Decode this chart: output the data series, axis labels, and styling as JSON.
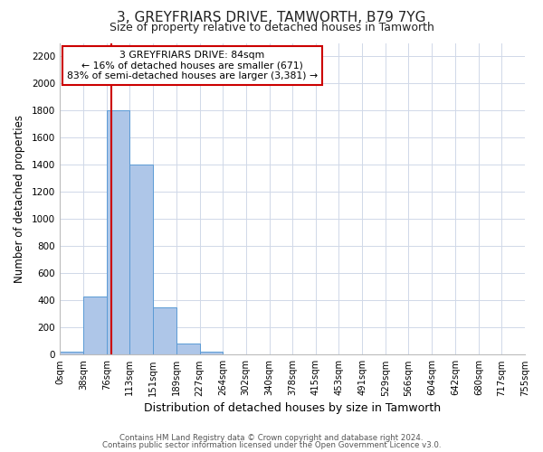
{
  "title": "3, GREYFRIARS DRIVE, TAMWORTH, B79 7YG",
  "subtitle": "Size of property relative to detached houses in Tamworth",
  "xlabel": "Distribution of detached houses by size in Tamworth",
  "ylabel": "Number of detached properties",
  "bin_edges": [
    0,
    38,
    76,
    113,
    151,
    189,
    227,
    264,
    302,
    340,
    378,
    415,
    453,
    491,
    529,
    566,
    604,
    642,
    680,
    717,
    755
  ],
  "bar_heights": [
    20,
    430,
    1800,
    1400,
    350,
    80,
    25,
    5,
    2,
    0,
    0,
    0,
    0,
    0,
    0,
    0,
    0,
    0,
    0,
    0
  ],
  "bar_color": "#aec6e8",
  "bar_edge_color": "#5b9bd5",
  "red_line_x": 84,
  "red_line_color": "#cc0000",
  "ylim": [
    0,
    2300
  ],
  "yticks": [
    0,
    200,
    400,
    600,
    800,
    1000,
    1200,
    1400,
    1600,
    1800,
    2000,
    2200
  ],
  "annotation_line1": "3 GREYFRIARS DRIVE: 84sqm",
  "annotation_line2": "← 16% of detached houses are smaller (671)",
  "annotation_line3": "83% of semi-detached houses are larger (3,381) →",
  "annotation_box_color": "#ffffff",
  "annotation_box_edge_color": "#cc0000",
  "footer1": "Contains HM Land Registry data © Crown copyright and database right 2024.",
  "footer2": "Contains public sector information licensed under the Open Government Licence v3.0.",
  "background_color": "#ffffff",
  "grid_color": "#d0d8e8",
  "tick_labels": [
    "0sqm",
    "38sqm",
    "76sqm",
    "113sqm",
    "151sqm",
    "189sqm",
    "227sqm",
    "264sqm",
    "302sqm",
    "340sqm",
    "378sqm",
    "415sqm",
    "453sqm",
    "491sqm",
    "529sqm",
    "566sqm",
    "604sqm",
    "642sqm",
    "680sqm",
    "717sqm",
    "755sqm"
  ],
  "title_fontsize": 11,
  "subtitle_fontsize": 9,
  "xlabel_fontsize": 9,
  "ylabel_fontsize": 8.5,
  "tick_fontsize": 7.2,
  "ytick_fontsize": 7.5,
  "annotation_fontsize": 7.8,
  "footer_fontsize": 6.2
}
